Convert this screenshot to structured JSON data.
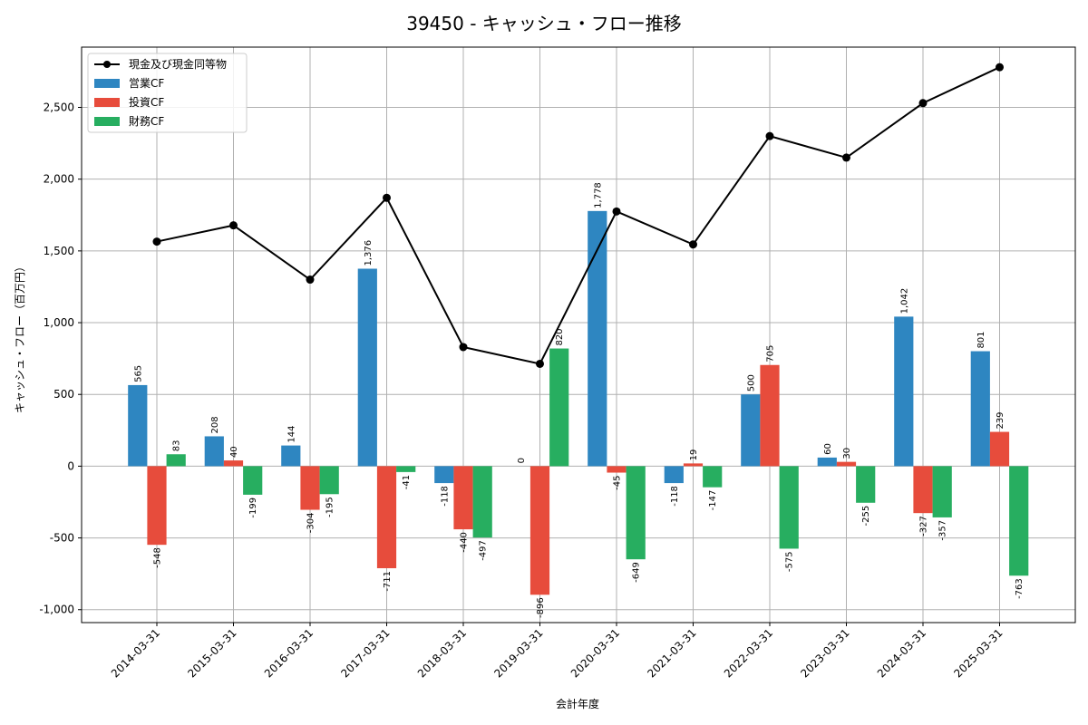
{
  "chart_data": {
    "type": "bar",
    "title": "39450 - キャッシュ・フロー推移",
    "xlabel": "会計年度",
    "ylabel": "キャッシュ・フロー（百万円）",
    "categories": [
      "2014-03-31",
      "2015-03-31",
      "2016-03-31",
      "2017-03-31",
      "2018-03-31",
      "2019-03-31",
      "2020-03-31",
      "2021-03-31",
      "2022-03-31",
      "2023-03-31",
      "2024-03-31",
      "2025-03-31"
    ],
    "series": [
      {
        "name": "営業CF",
        "kind": "bar",
        "color": "#2e86c1",
        "values": [
          565,
          208,
          144,
          1376,
          -118,
          0,
          1778,
          -118,
          500,
          60,
          1042,
          801
        ],
        "labels": [
          "565",
          "208",
          "144",
          "1,376",
          "-118",
          "0",
          "1,778",
          "-118",
          "500",
          "60",
          "1,042",
          "801"
        ]
      },
      {
        "name": "投資CF",
        "kind": "bar",
        "color": "#e74c3c",
        "values": [
          -548,
          40,
          -304,
          -711,
          -440,
          -896,
          -45,
          19,
          705,
          30,
          -327,
          239
        ],
        "labels": [
          "-548",
          "40",
          "-304",
          "-711",
          "-440",
          "-896",
          "-45",
          "19",
          "705",
          "30",
          "-327",
          "239"
        ]
      },
      {
        "name": "財務CF",
        "kind": "bar",
        "color": "#27ae60",
        "values": [
          83,
          -199,
          -195,
          -41,
          -497,
          820,
          -649,
          -147,
          -575,
          -255,
          -357,
          -763
        ],
        "labels": [
          "83",
          "-199",
          "-195",
          "-41",
          "-497",
          "820",
          "-649",
          "-147",
          "-575",
          "-255",
          "-357",
          "-763"
        ]
      },
      {
        "name": "現金及び現金同等物",
        "kind": "line",
        "color": "#000000",
        "values": [
          1565,
          1678,
          1300,
          1870,
          830,
          713,
          1775,
          1545,
          2300,
          2150,
          2530,
          2780
        ]
      }
    ],
    "ylim": [
      -1090,
      2920
    ],
    "yticks": [
      -1000,
      -500,
      0,
      500,
      1000,
      1500,
      2000,
      2500
    ],
    "ytick_labels": [
      "-1,000",
      "-500",
      "0",
      "500",
      "1,000",
      "1,500",
      "2,000",
      "2,500"
    ],
    "grid": true,
    "legend_position": "top-left",
    "legend_order": [
      "現金及び現金同等物",
      "営業CF",
      "投資CF",
      "財務CF"
    ]
  }
}
